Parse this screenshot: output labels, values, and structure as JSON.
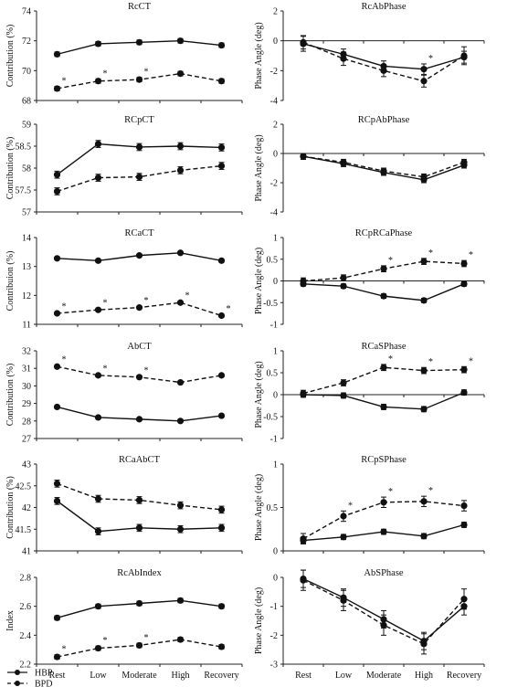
{
  "legend": [
    "HBP",
    "BPD"
  ],
  "chart_data": [
    {
      "type": "line",
      "title": "RcCT",
      "ylabel": "Contribution (%)",
      "ylim": [
        68,
        74
      ],
      "yticks": [
        68,
        70,
        72,
        74
      ],
      "categories": [
        "Rest",
        "Low",
        "Moderate",
        "High",
        "Recovery"
      ],
      "series": [
        {
          "name": "HBP",
          "values": [
            71.1,
            71.8,
            71.9,
            72.0,
            71.7
          ],
          "err": [
            0.15,
            0.15,
            0.15,
            0.15,
            0.15
          ]
        },
        {
          "name": "BPD",
          "values": [
            68.8,
            69.3,
            69.4,
            69.8,
            69.3
          ],
          "err": [
            0.15,
            0.15,
            0.15,
            0.15,
            0.15
          ]
        }
      ],
      "stars": [
        {
          "series": 1,
          "index": 0
        },
        {
          "series": 1,
          "index": 1
        },
        {
          "series": 1,
          "index": 2
        }
      ]
    },
    {
      "type": "line",
      "title": "RcAbPhase",
      "ylabel": "Phase Angle (deg)",
      "ylim": [
        -4,
        2
      ],
      "yticks": [
        -4,
        -2,
        0,
        2
      ],
      "categories": [
        "Rest",
        "Low",
        "Moderate",
        "High",
        "Recovery"
      ],
      "series": [
        {
          "name": "HBP",
          "values": [
            -0.2,
            -0.9,
            -1.7,
            -1.9,
            -1.1
          ],
          "err": [
            0.5,
            0.35,
            0.35,
            0.35,
            0.4
          ]
        },
        {
          "name": "BPD",
          "values": [
            -0.1,
            -1.2,
            -2.0,
            -2.7,
            -1.0
          ],
          "err": [
            0.45,
            0.45,
            0.4,
            0.4,
            0.6
          ]
        }
      ],
      "stars": [
        {
          "series": 0,
          "index": 3
        }
      ]
    },
    {
      "type": "line",
      "title": "RCpCT",
      "ylabel": "Contribution (%)",
      "ylim": [
        57,
        59
      ],
      "yticks": [
        57,
        57.5,
        58,
        58.5,
        59
      ],
      "categories": [
        "Rest",
        "Low",
        "Moderate",
        "High",
        "Recovery"
      ],
      "series": [
        {
          "name": "HBP",
          "values": [
            57.85,
            58.55,
            58.48,
            58.5,
            58.47
          ],
          "err": [
            0.08,
            0.08,
            0.08,
            0.08,
            0.08
          ]
        },
        {
          "name": "BPD",
          "values": [
            57.47,
            57.78,
            57.8,
            57.95,
            58.05
          ],
          "err": [
            0.08,
            0.08,
            0.08,
            0.08,
            0.08
          ]
        }
      ],
      "stars": []
    },
    {
      "type": "line",
      "title": "RCpAbPhase",
      "ylabel": "Phase Angle (deg)",
      "ylim": [
        -4,
        2
      ],
      "yticks": [
        -4,
        -2,
        0,
        2
      ],
      "categories": [
        "Rest",
        "Low",
        "Moderate",
        "High",
        "Recovery"
      ],
      "series": [
        {
          "name": "HBP",
          "values": [
            -0.2,
            -0.7,
            -1.3,
            -1.8,
            -0.8
          ],
          "err": [
            0.2,
            0.2,
            0.2,
            0.2,
            0.2
          ]
        },
        {
          "name": "BPD",
          "values": [
            -0.2,
            -0.6,
            -1.2,
            -1.6,
            -0.6
          ],
          "err": [
            0.2,
            0.2,
            0.2,
            0.2,
            0.2
          ]
        }
      ],
      "stars": []
    },
    {
      "type": "line",
      "title": "RCaCT",
      "ylabel": "Contribuion (%)",
      "ylim": [
        11,
        14
      ],
      "yticks": [
        11,
        12,
        13,
        14
      ],
      "categories": [
        "Rest",
        "Low",
        "Moderate",
        "High",
        "Recovery"
      ],
      "series": [
        {
          "name": "HBP",
          "values": [
            13.28,
            13.2,
            13.38,
            13.47,
            13.2
          ],
          "err": [
            0.05,
            0.05,
            0.05,
            0.05,
            0.05
          ]
        },
        {
          "name": "BPD",
          "values": [
            11.38,
            11.5,
            11.58,
            11.75,
            11.3
          ],
          "err": [
            0.05,
            0.05,
            0.05,
            0.05,
            0.05
          ]
        }
      ],
      "stars": [
        {
          "series": 1,
          "index": 0
        },
        {
          "series": 1,
          "index": 1
        },
        {
          "series": 1,
          "index": 2
        },
        {
          "series": 1,
          "index": 3
        },
        {
          "series": 1,
          "index": 4
        }
      ]
    },
    {
      "type": "line",
      "title": "RCpRCaPhase",
      "ylabel": "Phase Angle (deg)",
      "ylim": [
        -1,
        1
      ],
      "yticks": [
        -1,
        -0.5,
        0,
        0.5,
        1
      ],
      "categories": [
        "Rest",
        "Low",
        "Moderate",
        "High",
        "Recovery"
      ],
      "series": [
        {
          "name": "HBP",
          "values": [
            -0.07,
            -0.12,
            -0.35,
            -0.45,
            -0.07
          ],
          "err": [
            0.05,
            0.05,
            0.05,
            0.05,
            0.05
          ]
        },
        {
          "name": "BPD",
          "values": [
            0.0,
            0.07,
            0.28,
            0.45,
            0.4
          ],
          "err": [
            0.07,
            0.07,
            0.07,
            0.07,
            0.07
          ]
        }
      ],
      "stars": [
        {
          "series": 1,
          "index": 2
        },
        {
          "series": 1,
          "index": 3
        },
        {
          "series": 1,
          "index": 4
        }
      ]
    },
    {
      "type": "line",
      "title": "AbCT",
      "ylabel": "Contribution (%)",
      "ylim": [
        27,
        32
      ],
      "yticks": [
        27,
        28,
        29,
        30,
        31,
        32
      ],
      "categories": [
        "Rest",
        "Low",
        "Moderate",
        "High",
        "Recovery"
      ],
      "series": [
        {
          "name": "HBP",
          "values": [
            28.8,
            28.2,
            28.1,
            28.0,
            28.3
          ],
          "err": [
            0.08,
            0.08,
            0.08,
            0.08,
            0.08
          ]
        },
        {
          "name": "BPD",
          "values": [
            31.1,
            30.6,
            30.5,
            30.2,
            30.6
          ],
          "err": [
            0.08,
            0.08,
            0.08,
            0.08,
            0.08
          ]
        }
      ],
      "stars": [
        {
          "series": 1,
          "index": 0
        },
        {
          "series": 1,
          "index": 1
        },
        {
          "series": 1,
          "index": 2
        }
      ]
    },
    {
      "type": "line",
      "title": "RCaSPhase",
      "ylabel": "Phase Angle (deg)",
      "ylim": [
        -1,
        1
      ],
      "yticks": [
        -1,
        -0.5,
        0,
        0.5,
        1
      ],
      "categories": [
        "Rest",
        "Low",
        "Moderate",
        "High",
        "Recovery"
      ],
      "series": [
        {
          "name": "HBP",
          "values": [
            0.0,
            -0.02,
            -0.28,
            -0.33,
            0.05
          ],
          "err": [
            0.06,
            0.06,
            0.06,
            0.06,
            0.06
          ]
        },
        {
          "name": "BPD",
          "values": [
            0.03,
            0.27,
            0.62,
            0.55,
            0.57
          ],
          "err": [
            0.07,
            0.07,
            0.07,
            0.07,
            0.07
          ]
        }
      ],
      "stars": [
        {
          "series": 1,
          "index": 2
        },
        {
          "series": 1,
          "index": 3
        },
        {
          "series": 1,
          "index": 4
        }
      ]
    },
    {
      "type": "line",
      "title": "RCaAbCT",
      "ylabel": "Contribution (%)",
      "ylim": [
        41,
        43
      ],
      "yticks": [
        41,
        41.5,
        42,
        42.5,
        43
      ],
      "categories": [
        "Rest",
        "Low",
        "Moderate",
        "High",
        "Recovery"
      ],
      "series": [
        {
          "name": "HBP",
          "values": [
            42.15,
            41.45,
            41.53,
            41.5,
            41.53
          ],
          "err": [
            0.08,
            0.08,
            0.08,
            0.08,
            0.08
          ]
        },
        {
          "name": "BPD",
          "values": [
            42.55,
            42.2,
            42.17,
            42.05,
            41.95
          ],
          "err": [
            0.08,
            0.08,
            0.08,
            0.08,
            0.08
          ]
        }
      ],
      "stars": []
    },
    {
      "type": "line",
      "title": "RCpSPhase",
      "ylabel": "Phase Angle (deg)",
      "ylim": [
        0,
        1
      ],
      "yticks": [
        0,
        0.5,
        1
      ],
      "categories": [
        "Rest",
        "Low",
        "Moderate",
        "High",
        "Recovery"
      ],
      "series": [
        {
          "name": "HBP",
          "values": [
            0.12,
            0.16,
            0.22,
            0.17,
            0.3
          ],
          "err": [
            0.03,
            0.03,
            0.03,
            0.03,
            0.03
          ]
        },
        {
          "name": "BPD",
          "values": [
            0.14,
            0.4,
            0.56,
            0.57,
            0.52
          ],
          "err": [
            0.06,
            0.06,
            0.06,
            0.06,
            0.06
          ]
        }
      ],
      "stars": [
        {
          "series": 1,
          "index": 1
        },
        {
          "series": 1,
          "index": 2
        },
        {
          "series": 1,
          "index": 3
        }
      ]
    },
    {
      "type": "line",
      "title": "RcAbIndex",
      "ylabel": "Index",
      "ylim": [
        2.2,
        2.8
      ],
      "yticks": [
        2.2,
        2.4,
        2.6,
        2.8
      ],
      "categories": [
        "Rest",
        "Low",
        "Moderate",
        "High",
        "Recovery"
      ],
      "series": [
        {
          "name": "HBP",
          "values": [
            2.52,
            2.6,
            2.62,
            2.64,
            2.6
          ],
          "err": [
            0.015,
            0.015,
            0.015,
            0.015,
            0.015
          ]
        },
        {
          "name": "BPD",
          "values": [
            2.25,
            2.31,
            2.33,
            2.37,
            2.32
          ],
          "err": [
            0.015,
            0.015,
            0.015,
            0.015,
            0.015
          ]
        }
      ],
      "stars": [
        {
          "series": 1,
          "index": 0
        },
        {
          "series": 1,
          "index": 1
        },
        {
          "series": 1,
          "index": 2
        }
      ]
    },
    {
      "type": "line",
      "title": "AbSPhase",
      "ylabel": "Phase Angle (deg)",
      "ylim": [
        -3,
        0
      ],
      "yticks": [
        -3,
        -2,
        -1,
        0
      ],
      "categories": [
        "Rest",
        "Low",
        "Moderate",
        "High",
        "Recovery"
      ],
      "series": [
        {
          "name": "HBP",
          "values": [
            -0.05,
            -0.7,
            -1.45,
            -2.2,
            -1.0
          ],
          "err": [
            0.3,
            0.3,
            0.3,
            0.3,
            0.3
          ]
        },
        {
          "name": "BPD",
          "values": [
            -0.1,
            -0.8,
            -1.65,
            -2.3,
            -0.75
          ],
          "err": [
            0.35,
            0.35,
            0.35,
            0.35,
            0.35
          ]
        }
      ],
      "stars": []
    }
  ]
}
